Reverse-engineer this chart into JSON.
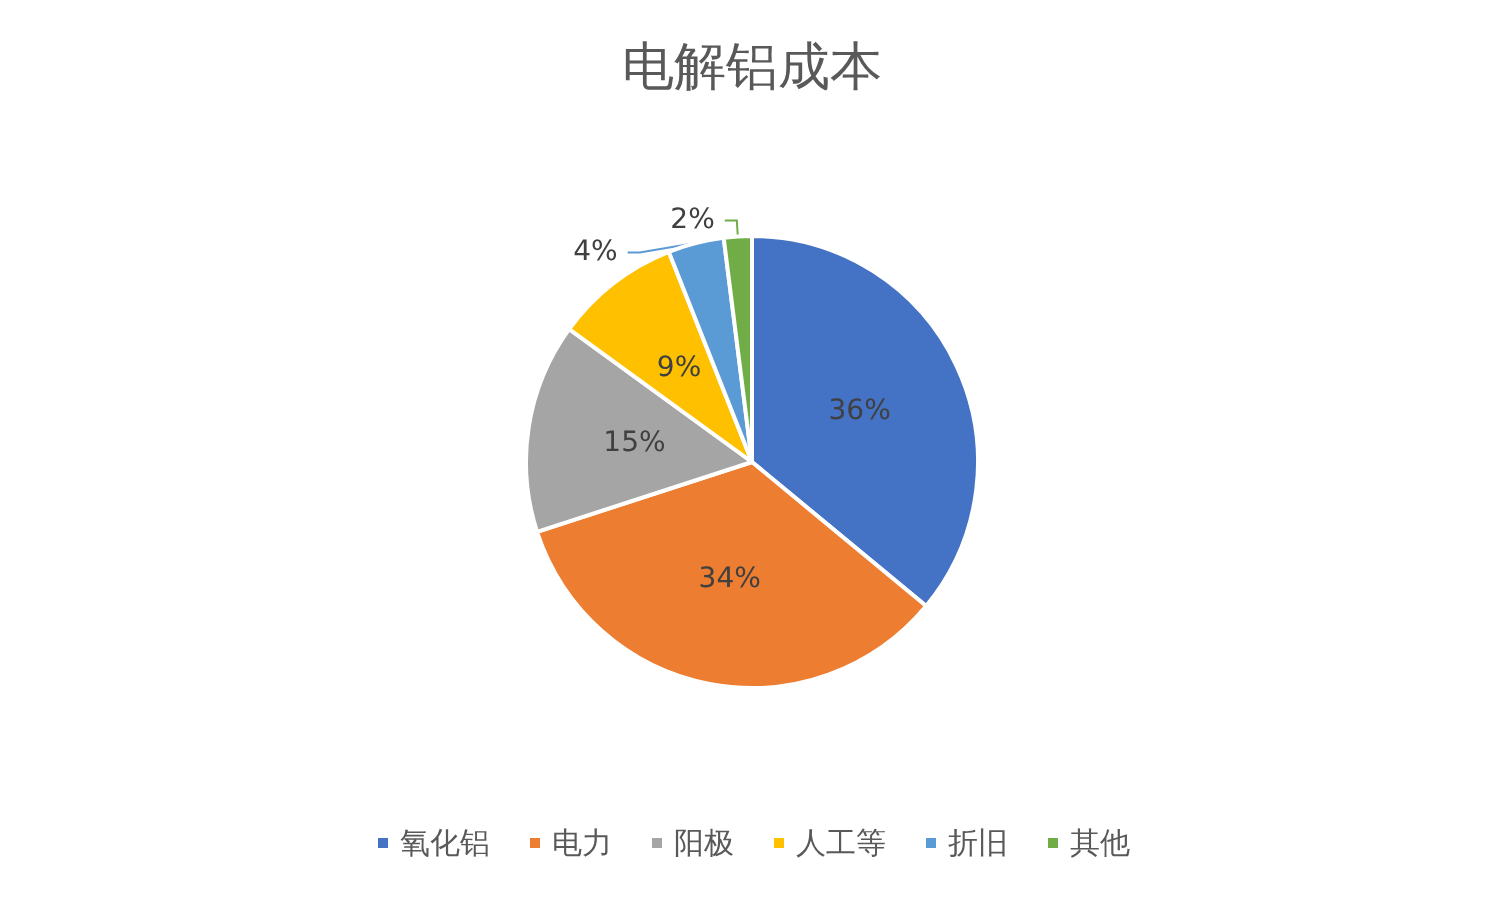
{
  "chart_data": {
    "type": "pie",
    "title": "电解铝成本",
    "categories": [
      "氧化铝",
      "电力",
      "阳极",
      "人工等",
      "折旧",
      "其他"
    ],
    "values": [
      36,
      34,
      15,
      9,
      4,
      2
    ],
    "colors": [
      "#4472c4",
      "#ed7d31",
      "#a5a5a5",
      "#ffc000",
      "#5b9bd5",
      "#70ad47"
    ],
    "value_labels": [
      "36%",
      "34%",
      "15%",
      "9%",
      "4%",
      "2%"
    ],
    "legend": "bottom"
  }
}
